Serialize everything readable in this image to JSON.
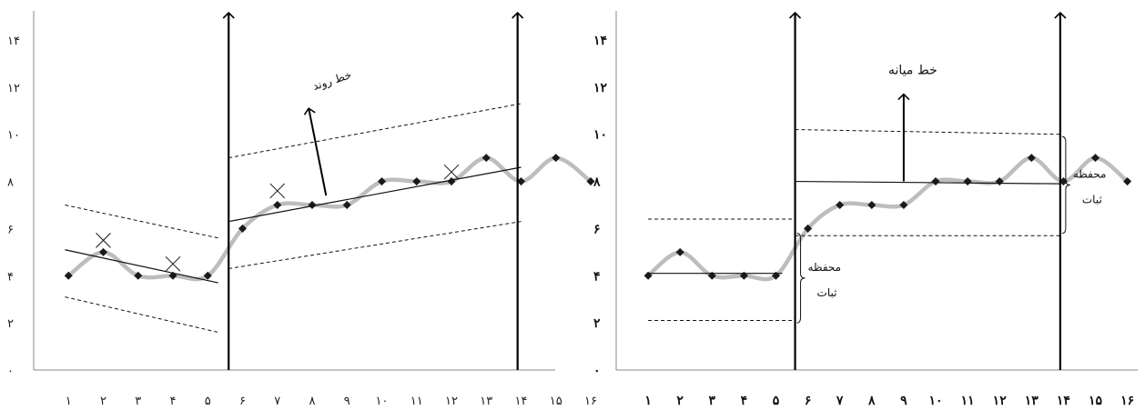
{
  "chart_data": [
    {
      "type": "line",
      "x": [
        1,
        2,
        3,
        4,
        5,
        6,
        7,
        8,
        9,
        10,
        11,
        12,
        13,
        14,
        15,
        16
      ],
      "values": [
        4,
        5,
        4,
        4,
        4,
        6,
        7,
        7,
        7,
        8,
        8,
        8,
        9,
        8,
        9,
        8
      ],
      "x_tick_labels": [
        "۱",
        "۲",
        "۳",
        "۴",
        "۵",
        "۶",
        "۷",
        "۸",
        "۹",
        "۱۰",
        "۱۱",
        "۱۲",
        "۱۳",
        "۱۴",
        "۱۵",
        "۱۶"
      ],
      "y_tick_labels": [
        "۰",
        "۲",
        "۴",
        "۶",
        "۸",
        "۱۰",
        "۱۲",
        "۱۴"
      ],
      "ylim": [
        0,
        14
      ],
      "phase_lines_at": [
        5.6,
        13.9
      ],
      "trend_lines": [
        {
          "from": [
            0.9,
            5.1
          ],
          "to": [
            5.3,
            3.7
          ]
        },
        {
          "from": [
            5.6,
            6.3
          ],
          "to": [
            14.0,
            8.6
          ]
        }
      ],
      "envelope_lines": [
        {
          "from": [
            0.9,
            7.0
          ],
          "to": [
            5.3,
            5.6
          ]
        },
        {
          "from": [
            0.9,
            3.1
          ],
          "to": [
            5.3,
            1.6
          ]
        },
        {
          "from": [
            5.6,
            9.0
          ],
          "to": [
            14.0,
            11.3
          ]
        },
        {
          "from": [
            5.6,
            4.3
          ],
          "to": [
            14.0,
            6.3
          ]
        }
      ],
      "x_marks": [
        [
          2,
          5.5
        ],
        [
          4,
          4.5
        ],
        [
          7,
          7.6
        ],
        [
          12,
          8.4
        ]
      ],
      "annotation": {
        "text": "خط روند",
        "arrow_from": [
          8.4,
          7.4
        ],
        "arrow_to": [
          7.9,
          11.1
        ]
      },
      "grid": false
    },
    {
      "type": "line",
      "x": [
        1,
        2,
        3,
        4,
        5,
        6,
        7,
        8,
        9,
        10,
        11,
        12,
        13,
        14,
        15,
        16
      ],
      "values": [
        4,
        5,
        4,
        4,
        4,
        6,
        7,
        7,
        7,
        8,
        8,
        8,
        9,
        8,
        9,
        8
      ],
      "x_tick_labels": [
        "۱",
        "۲",
        "۳",
        "۴",
        "۵",
        "۶",
        "۷",
        "۸",
        "۹",
        "۱۰",
        "۱۱",
        "۱۲",
        "۱۳",
        "۱۴",
        "۱۵",
        "۱۶"
      ],
      "y_tick_labels": [
        "۰",
        "۲",
        "۴",
        "۶",
        "۸",
        "۱۰",
        "۱۲",
        "۱۴"
      ],
      "ylim": [
        0,
        14
      ],
      "phase_lines_at": [
        5.6,
        13.9
      ],
      "mean_lines": [
        {
          "from": [
            1,
            4.1
          ],
          "to": [
            5.2,
            4.1
          ]
        },
        {
          "from": [
            5.6,
            8.0
          ],
          "to": [
            13.9,
            7.9
          ]
        }
      ],
      "stability_band_lines": [
        {
          "from": [
            1,
            6.4
          ],
          "to": [
            5.6,
            6.4
          ]
        },
        {
          "from": [
            1,
            2.1
          ],
          "to": [
            5.6,
            2.1
          ]
        },
        {
          "from": [
            5.6,
            10.2
          ],
          "to": [
            13.9,
            10.0
          ]
        },
        {
          "from": [
            5.6,
            5.7
          ],
          "to": [
            13.9,
            5.7
          ]
        }
      ],
      "mean_annotation": {
        "text": "خط میانه",
        "arrow_from": [
          9,
          8.0
        ],
        "arrow_to": [
          9,
          11.7
        ]
      },
      "stability_labels": [
        {
          "line1": "محفظه",
          "line2": "ثبات",
          "y_top": 5.8,
          "y_bottom": 2.0
        },
        {
          "line1": "محفظه",
          "line2": "ثبات",
          "y_top": 9.9,
          "y_bottom": 5.8
        }
      ],
      "grid": false
    }
  ]
}
